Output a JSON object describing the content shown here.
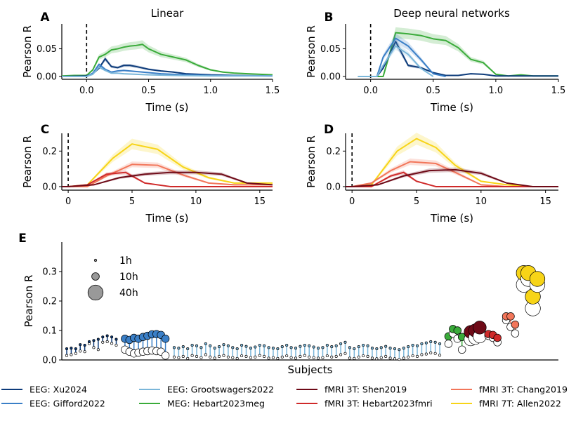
{
  "colors": {
    "eeg_xu": "#0d3b7a",
    "eeg_gifford": "#3a7fc7",
    "eeg_groot": "#7ab6d9",
    "meg_hebart": "#3aab3a",
    "fmri_shen": "#6e0a17",
    "fmri_hebart": "#cf2a2a",
    "fmri_chang": "#f2765a",
    "fmri_allen": "#f7d417"
  },
  "chart_data": [
    {
      "id": "A",
      "type": "line",
      "title": "Linear",
      "xlabel": "Time (s)",
      "ylabel": "Pearson R",
      "xlim": [
        -0.2,
        1.5
      ],
      "ylim": [
        -0.005,
        0.095
      ],
      "xticks": [
        "0.0",
        "0.5",
        "1.0",
        "1.5"
      ],
      "yticks": [
        "0.00",
        "0.05"
      ],
      "onset_line": 0,
      "series": [
        {
          "name": "MEG: Hebart2023meg",
          "color_key": "meg_hebart",
          "x": [
            -0.2,
            -0.1,
            0,
            0.05,
            0.1,
            0.15,
            0.2,
            0.25,
            0.3,
            0.35,
            0.4,
            0.45,
            0.5,
            0.55,
            0.6,
            0.7,
            0.8,
            0.9,
            1.0,
            1.1,
            1.2,
            1.3,
            1.4,
            1.5
          ],
          "y": [
            0.001,
            0.002,
            0.002,
            0.012,
            0.035,
            0.04,
            0.048,
            0.05,
            0.053,
            0.055,
            0.056,
            0.058,
            0.05,
            0.045,
            0.04,
            0.035,
            0.03,
            0.02,
            0.012,
            0.008,
            0.006,
            0.005,
            0.004,
            0.003
          ]
        },
        {
          "name": "EEG: Xu2024",
          "color_key": "eeg_xu",
          "x": [
            -0.2,
            0,
            0.05,
            0.1,
            0.15,
            0.2,
            0.25,
            0.3,
            0.35,
            0.4,
            0.5,
            0.6,
            0.7,
            0.8,
            0.9,
            1.0,
            1.2,
            1.5
          ],
          "y": [
            0,
            0.001,
            0.005,
            0.015,
            0.032,
            0.018,
            0.016,
            0.02,
            0.02,
            0.018,
            0.013,
            0.01,
            0.008,
            0.005,
            0.004,
            0.003,
            0.002,
            0.001
          ]
        },
        {
          "name": "EEG: Gifford2022",
          "color_key": "eeg_gifford",
          "x": [
            -0.2,
            0,
            0.05,
            0.1,
            0.15,
            0.2,
            0.25,
            0.3,
            0.4,
            0.5,
            0.6,
            0.7,
            0.8,
            1.0,
            1.5
          ],
          "y": [
            0,
            0,
            0.006,
            0.022,
            0.013,
            0.008,
            0.01,
            0.011,
            0.009,
            0.007,
            0.005,
            0.004,
            0.003,
            0.002,
            0.001
          ]
        },
        {
          "name": "EEG: Grootswagers2022",
          "color_key": "eeg_groot",
          "x": [
            -0.2,
            0,
            0.05,
            0.1,
            0.15,
            0.2,
            0.25,
            0.3,
            0.4,
            0.5,
            0.7,
            1.0,
            1.5
          ],
          "y": [
            0,
            0,
            0.004,
            0.017,
            0.011,
            0.006,
            0.006,
            0.005,
            0.004,
            0.003,
            0.002,
            0.001,
            0.001
          ]
        }
      ]
    },
    {
      "id": "B",
      "type": "line",
      "title": "Deep neural networks",
      "xlabel": "Time (s)",
      "ylabel": "Pearson R",
      "xlim": [
        -0.2,
        1.5
      ],
      "ylim": [
        -0.005,
        0.095
      ],
      "xticks": [
        "0.0",
        "0.5",
        "1.0",
        "1.5"
      ],
      "yticks": [
        "0.00",
        "0.05"
      ],
      "onset_line": 0,
      "series": [
        {
          "name": "MEG: Hebart2023meg",
          "color_key": "meg_hebart",
          "x": [
            -0.1,
            0.1,
            0.2,
            0.3,
            0.4,
            0.5,
            0.6,
            0.7,
            0.8,
            0.9,
            1.0,
            1.1,
            1.2,
            1.3,
            1.4,
            1.5
          ],
          "y": [
            0,
            0,
            0.079,
            0.077,
            0.074,
            0.068,
            0.065,
            0.052,
            0.031,
            0.025,
            0.004,
            0.001,
            0.003,
            0.001,
            0.001,
            0.001
          ]
        },
        {
          "name": "EEG: Xu2024",
          "color_key": "eeg_xu",
          "x": [
            -0.1,
            0.05,
            0.1,
            0.2,
            0.3,
            0.4,
            0.5,
            0.6,
            0.7,
            0.8,
            0.9,
            1.0,
            1.5
          ],
          "y": [
            0,
            0,
            0.015,
            0.063,
            0.02,
            0.016,
            0.007,
            0.002,
            0.002,
            0.005,
            0.004,
            0.001,
            0.001
          ]
        },
        {
          "name": "EEG: Gifford2022",
          "color_key": "eeg_gifford",
          "x": [
            -0.1,
            0.05,
            0.1,
            0.2,
            0.3,
            0.4,
            0.5,
            0.6
          ],
          "y": [
            0,
            0,
            0.035,
            0.069,
            0.055,
            0.031,
            0.005,
            0
          ]
        },
        {
          "name": "EEG: Grootswagers2022",
          "color_key": "eeg_groot",
          "x": [
            -0.1,
            0.05,
            0.1,
            0.2,
            0.3,
            0.4,
            0.5
          ],
          "y": [
            0,
            0,
            0.02,
            0.055,
            0.04,
            0.015,
            0
          ]
        }
      ]
    },
    {
      "id": "C",
      "type": "line",
      "title": "",
      "xlabel": "Time (s)",
      "ylabel": "Pearson R",
      "xlim": [
        -0.5,
        16
      ],
      "ylim": [
        -0.02,
        0.3
      ],
      "xticks": [
        "0",
        "5",
        "10",
        "15"
      ],
      "yticks": [
        "0.0",
        "0.2"
      ],
      "onset_line": 0,
      "series": [
        {
          "name": "fMRI 7T: Allen2022",
          "color_key": "fmri_allen",
          "x": [
            -0.5,
            0,
            1.5,
            3.5,
            5,
            7,
            9,
            11,
            13,
            16
          ],
          "y": [
            0,
            0,
            0.01,
            0.16,
            0.24,
            0.21,
            0.11,
            0.05,
            0.02,
            0.02
          ]
        },
        {
          "name": "fMRI 3T: Chang2019",
          "color_key": "fmri_chang",
          "x": [
            -0.5,
            0,
            1.5,
            3,
            5,
            7,
            9,
            11,
            13,
            16
          ],
          "y": [
            0,
            0,
            0,
            0.06,
            0.125,
            0.12,
            0.065,
            0.02,
            0.01,
            0.01
          ]
        },
        {
          "name": "fMRI 3T: Hebart2023fmri",
          "color_key": "fmri_hebart",
          "x": [
            -0.5,
            0,
            1.5,
            3,
            4.5,
            6,
            8,
            10,
            16
          ],
          "y": [
            0,
            0,
            0.01,
            0.07,
            0.08,
            0.02,
            0,
            0,
            0
          ]
        },
        {
          "name": "fMRI 3T: Shen2019",
          "color_key": "fmri_shen",
          "x": [
            -0.5,
            0,
            2,
            4,
            6,
            8,
            10,
            12,
            14,
            16
          ],
          "y": [
            0,
            0,
            0.01,
            0.05,
            0.07,
            0.08,
            0.08,
            0.07,
            0.02,
            0.01
          ]
        }
      ]
    },
    {
      "id": "D",
      "type": "line",
      "title": "",
      "xlabel": "Time (s)",
      "ylabel": "Pearson R",
      "xlim": [
        -0.5,
        16
      ],
      "ylim": [
        -0.02,
        0.3
      ],
      "xticks": [
        "0",
        "5",
        "10",
        "15"
      ],
      "yticks": [
        "0.0",
        "0.2"
      ],
      "onset_line": 0,
      "series": [
        {
          "name": "fMRI 7T: Allen2022",
          "color_key": "fmri_allen",
          "x": [
            -0.5,
            0,
            1.5,
            3.5,
            5,
            6.5,
            8,
            10,
            12,
            14,
            16
          ],
          "y": [
            0,
            0,
            0.01,
            0.2,
            0.27,
            0.22,
            0.12,
            0.03,
            0.01,
            0,
            0
          ]
        },
        {
          "name": "fMRI 3T: Chang2019",
          "color_key": "fmri_chang",
          "x": [
            -0.5,
            0,
            1.5,
            3,
            4.5,
            6.5,
            8,
            10,
            12,
            16
          ],
          "y": [
            0,
            0,
            0.02,
            0.09,
            0.14,
            0.13,
            0.08,
            0.01,
            0,
            0
          ]
        },
        {
          "name": "fMRI 3T: Hebart2023fmri",
          "color_key": "fmri_hebart",
          "x": [
            -0.5,
            0,
            1.5,
            3,
            4,
            5,
            6.5,
            8,
            16
          ],
          "y": [
            0,
            0,
            0,
            0.06,
            0.08,
            0.03,
            0,
            0,
            0
          ]
        },
        {
          "name": "fMRI 3T: Shen2019",
          "color_key": "fmri_shen",
          "x": [
            -0.5,
            0,
            2,
            4,
            6,
            8,
            10,
            12,
            14,
            16
          ],
          "y": [
            0,
            0,
            0.01,
            0.06,
            0.09,
            0.095,
            0.075,
            0.02,
            0,
            0
          ]
        }
      ]
    },
    {
      "id": "E",
      "type": "scatter",
      "title": "",
      "xlabel": "Subjects",
      "ylabel": "Pearson R",
      "ylim": [
        0,
        0.4
      ],
      "yticks": [
        "0.0",
        "0.1",
        "0.2",
        "0.3"
      ],
      "size_legend": [
        {
          "label": "1h",
          "hours": 1
        },
        {
          "label": "10h",
          "hours": 10
        },
        {
          "label": "40h",
          "hours": 40
        }
      ],
      "groups": [
        {
          "name": "EEG: Xu2024",
          "color_key": "eeg_xu",
          "hours": 1,
          "deep": [
            0.038,
            0.04,
            0.038,
            0.052,
            0.05,
            0.062,
            0.066,
            0.07,
            0.078,
            0.082,
            0.078,
            0.07
          ],
          "lin": [
            0.015,
            0.018,
            0.022,
            0.03,
            0.028,
            0.055,
            0.042,
            0.035,
            0.06,
            0.062,
            0.056,
            0.05
          ]
        },
        {
          "name": "EEG: Gifford2022",
          "color_key": "eeg_gifford",
          "hours": 10,
          "deep": [
            0.072,
            0.068,
            0.075,
            0.072,
            0.078,
            0.082,
            0.087,
            0.088,
            0.085,
            0.072
          ],
          "lin": [
            0.035,
            0.028,
            0.022,
            0.025,
            0.028,
            0.03,
            0.032,
            0.03,
            0.028,
            0.015
          ]
        },
        {
          "name": "EEG: Grootswagers2022",
          "color_key": "eeg_groot",
          "hours": 1,
          "deep": [
            0.042,
            0.04,
            0.045,
            0.038,
            0.05,
            0.048,
            0.042,
            0.055,
            0.048,
            0.04,
            0.045,
            0.052,
            0.048,
            0.042,
            0.038,
            0.05,
            0.046,
            0.04,
            0.044,
            0.05,
            0.048,
            0.042,
            0.04,
            0.038,
            0.045,
            0.05,
            0.042,
            0.04,
            0.046,
            0.05,
            0.048,
            0.044,
            0.04,
            0.042,
            0.05,
            0.045,
            0.048,
            0.055,
            0.06,
            0.042,
            0.038,
            0.045,
            0.05,
            0.048,
            0.04,
            0.038,
            0.042,
            0.046,
            0.04,
            0.038,
            0.035,
            0.04,
            0.045,
            0.05,
            0.048,
            0.055,
            0.058,
            0.062,
            0.06,
            0.055
          ],
          "lin": [
            0.01,
            0.008,
            0.012,
            0.005,
            0.015,
            0.012,
            0.008,
            0.018,
            0.01,
            0.006,
            0.012,
            0.015,
            0.01,
            0.008,
            0.005,
            0.014,
            0.012,
            0.008,
            0.01,
            0.015,
            0.012,
            0.006,
            0.008,
            0.005,
            0.01,
            0.014,
            0.008,
            0.006,
            0.012,
            0.015,
            0.01,
            0.008,
            0.006,
            0.008,
            0.014,
            0.01,
            0.012,
            0.018,
            0.022,
            0.006,
            0.005,
            0.01,
            0.014,
            0.012,
            0.006,
            0.004,
            0.008,
            0.012,
            0.006,
            0.004,
            0.002,
            0.006,
            0.01,
            0.014,
            0.012,
            0.018,
            0.02,
            0.024,
            0.022,
            0.016
          ]
        },
        {
          "name": "MEG: Hebart2023meg",
          "color_key": "meg_hebart",
          "hours": 10,
          "deep": [
            0.08,
            0.105,
            0.1,
            0.078
          ],
          "lin": [
            0.055,
            0.09,
            0.072,
            0.035
          ]
        },
        {
          "name": "fMRI 3T: Shen2019",
          "color_key": "fmri_shen",
          "hours": 30,
          "deep": [
            0.095,
            0.1,
            0.11
          ],
          "lin": [
            0.07,
            0.075,
            0.08
          ]
        },
        {
          "name": "fMRI 3T: Hebart2023fmri",
          "color_key": "fmri_hebart",
          "hours": 10,
          "deep": [
            0.088,
            0.085,
            0.075
          ],
          "lin": [
            0.082,
            0.075,
            0.06
          ]
        },
        {
          "name": "fMRI 3T: Chang2019",
          "color_key": "fmri_chang",
          "hours": 10,
          "deep": [
            0.148,
            0.148,
            0.12
          ],
          "lin": [
            0.135,
            0.112,
            0.09
          ]
        },
        {
          "name": "fMRI 7T: Allen2022",
          "color_key": "fmri_allen",
          "hours": 40,
          "deep": [
            0.295,
            0.295,
            0.215,
            0.275
          ],
          "lin": [
            0.255,
            0.275,
            0.175,
            0.255
          ]
        }
      ]
    }
  ],
  "legend": [
    {
      "label": "EEG: Xu2024",
      "color_key": "eeg_xu"
    },
    {
      "label": "EEG: Gifford2022",
      "color_key": "eeg_gifford"
    },
    {
      "label": "EEG: Grootswagers2022",
      "color_key": "eeg_groot"
    },
    {
      "label": "MEG: Hebart2023meg",
      "color_key": "meg_hebart"
    },
    {
      "label": "fMRI 3T: Shen2019",
      "color_key": "fmri_shen"
    },
    {
      "label": "fMRI 3T: Hebart2023fmri",
      "color_key": "fmri_hebart"
    },
    {
      "label": "fMRI 3T: Chang2019",
      "color_key": "fmri_chang"
    },
    {
      "label": "fMRI 7T: Allen2022",
      "color_key": "fmri_allen"
    }
  ]
}
